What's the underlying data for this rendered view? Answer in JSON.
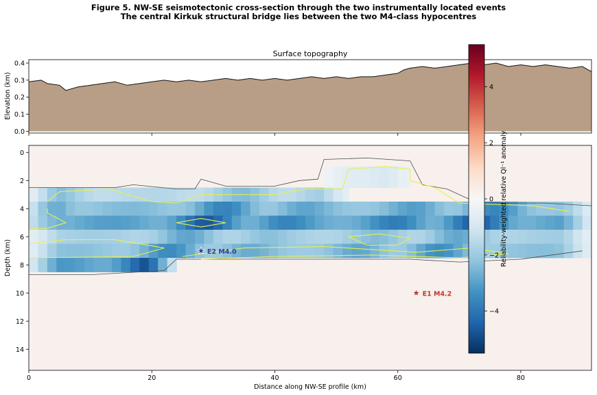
{
  "figure": {
    "title_line1": "Figure 5. NW-SE seismotectonic cross-section through the two instrumentally located events",
    "title_line2": "The central Kirkuk structural bridge lies between the two M4-class hypocentres"
  },
  "chart_data": [
    {
      "type": "area",
      "title": "Surface topography",
      "xlabel": "",
      "ylabel": "Elevation (km)",
      "xlim": [
        0,
        91.5
      ],
      "ylim": [
        -0.01,
        0.42
      ],
      "yticks": [
        0.0,
        0.1,
        0.2,
        0.3,
        0.4
      ],
      "fill_color": "#b89e86",
      "line_color": "#111111",
      "x": [
        0,
        2,
        3,
        5,
        6,
        8,
        10,
        12,
        14,
        16,
        18,
        20,
        22,
        24,
        26,
        28,
        30,
        32,
        34,
        36,
        38,
        40,
        42,
        44,
        46,
        48,
        50,
        52,
        54,
        56,
        58,
        60,
        61,
        62,
        64,
        66,
        68,
        70,
        72,
        74,
        76,
        78,
        80,
        82,
        84,
        86,
        88,
        90,
        91.5
      ],
      "y": [
        0.29,
        0.3,
        0.28,
        0.27,
        0.24,
        0.26,
        0.27,
        0.28,
        0.29,
        0.27,
        0.28,
        0.29,
        0.3,
        0.29,
        0.3,
        0.29,
        0.3,
        0.31,
        0.3,
        0.31,
        0.3,
        0.31,
        0.3,
        0.31,
        0.32,
        0.31,
        0.32,
        0.31,
        0.32,
        0.32,
        0.33,
        0.34,
        0.36,
        0.37,
        0.38,
        0.37,
        0.38,
        0.39,
        0.4,
        0.39,
        0.4,
        0.38,
        0.39,
        0.38,
        0.39,
        0.38,
        0.37,
        0.38,
        0.35
      ]
    },
    {
      "type": "heatmap",
      "title": "",
      "xlabel": "Distance along NW-SE profile (km)",
      "ylabel": "Depth (km)",
      "xlim": [
        0,
        91.5
      ],
      "ylim": [
        15.5,
        -0.5
      ],
      "xticks": [
        0,
        20,
        40,
        60,
        80
      ],
      "yticks": [
        0,
        2,
        4,
        6,
        8,
        10,
        12,
        14
      ],
      "colormap": "RdBu_r",
      "colorbar": {
        "label": "Reliability-weighted relative Ql⁻¹ anomaly",
        "range": [
          -5.5,
          5.5
        ],
        "ticks": [
          -4,
          -2,
          0,
          2,
          4
        ],
        "tick_labels": [
          "−4",
          "−2",
          "0",
          "2",
          "4"
        ]
      },
      "contour_colors": {
        "outer": "#4a4a4a",
        "inner": "#e8f04a"
      },
      "events": [
        {
          "id": "E2",
          "label": "E2 M4.0",
          "x": 28,
          "depth": 7.0,
          "color": "#3b3b98"
        },
        {
          "id": "E1",
          "label": "E1 M4.2",
          "x": 63,
          "depth": 10.0,
          "color": "#c0392b"
        }
      ],
      "bands": [
        {
          "depth_top": 2.5,
          "depth_bottom": 3.5,
          "x_start": 0,
          "x_end": 52,
          "value": -2.5
        },
        {
          "depth_top": 3.5,
          "depth_bottom": 4.5,
          "x_start": 0,
          "x_end": 91.5,
          "value": -3.8
        },
        {
          "depth_top": 4.5,
          "depth_bottom": 5.5,
          "x_start": 0,
          "x_end": 91.5,
          "value": -4.8
        },
        {
          "depth_top": 5.5,
          "depth_bottom": 6.5,
          "x_start": 0,
          "x_end": 91.5,
          "value": -3.0
        },
        {
          "depth_top": 6.5,
          "depth_bottom": 7.5,
          "x_start": 0,
          "x_end": 91.5,
          "value": -3.6
        },
        {
          "depth_top": 7.5,
          "depth_bottom": 8.5,
          "x_start": 0,
          "x_end": 24,
          "value": -5.0
        },
        {
          "depth_top": 1.0,
          "depth_bottom": 2.5,
          "x_start": 48,
          "x_end": 62,
          "value": -1.2
        }
      ]
    }
  ]
}
